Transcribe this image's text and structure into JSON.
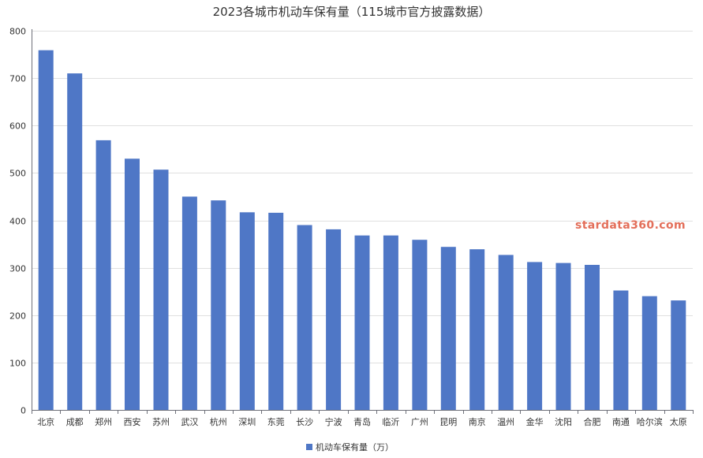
{
  "chart_data": {
    "type": "bar",
    "title": "2023各城市机动车保有量（115城市官方披露数据）",
    "categories": [
      "北京",
      "成都",
      "郑州",
      "西安",
      "苏州",
      "武汉",
      "杭州",
      "深圳",
      "东莞",
      "长沙",
      "宁波",
      "青岛",
      "临沂",
      "广州",
      "昆明",
      "南京",
      "温州",
      "金华",
      "沈阳",
      "合肥",
      "南通",
      "哈尔滨",
      "太原"
    ],
    "series": [
      {
        "name": "机动车保有量（万）",
        "values": [
          759,
          710,
          569,
          530,
          507,
          450,
          442,
          417,
          416,
          390,
          381,
          368,
          368,
          359,
          344,
          339,
          327,
          312,
          310,
          306,
          252,
          240,
          231
        ]
      }
    ],
    "ylim": [
      0,
      800
    ],
    "yticks": [
      0,
      100,
      200,
      300,
      400,
      500,
      600,
      700,
      800
    ],
    "grid": true,
    "legend_position": "bottom-center",
    "bar_color": "#4f77c6",
    "xlabel": "",
    "ylabel": ""
  },
  "watermark": "stardata360.com"
}
